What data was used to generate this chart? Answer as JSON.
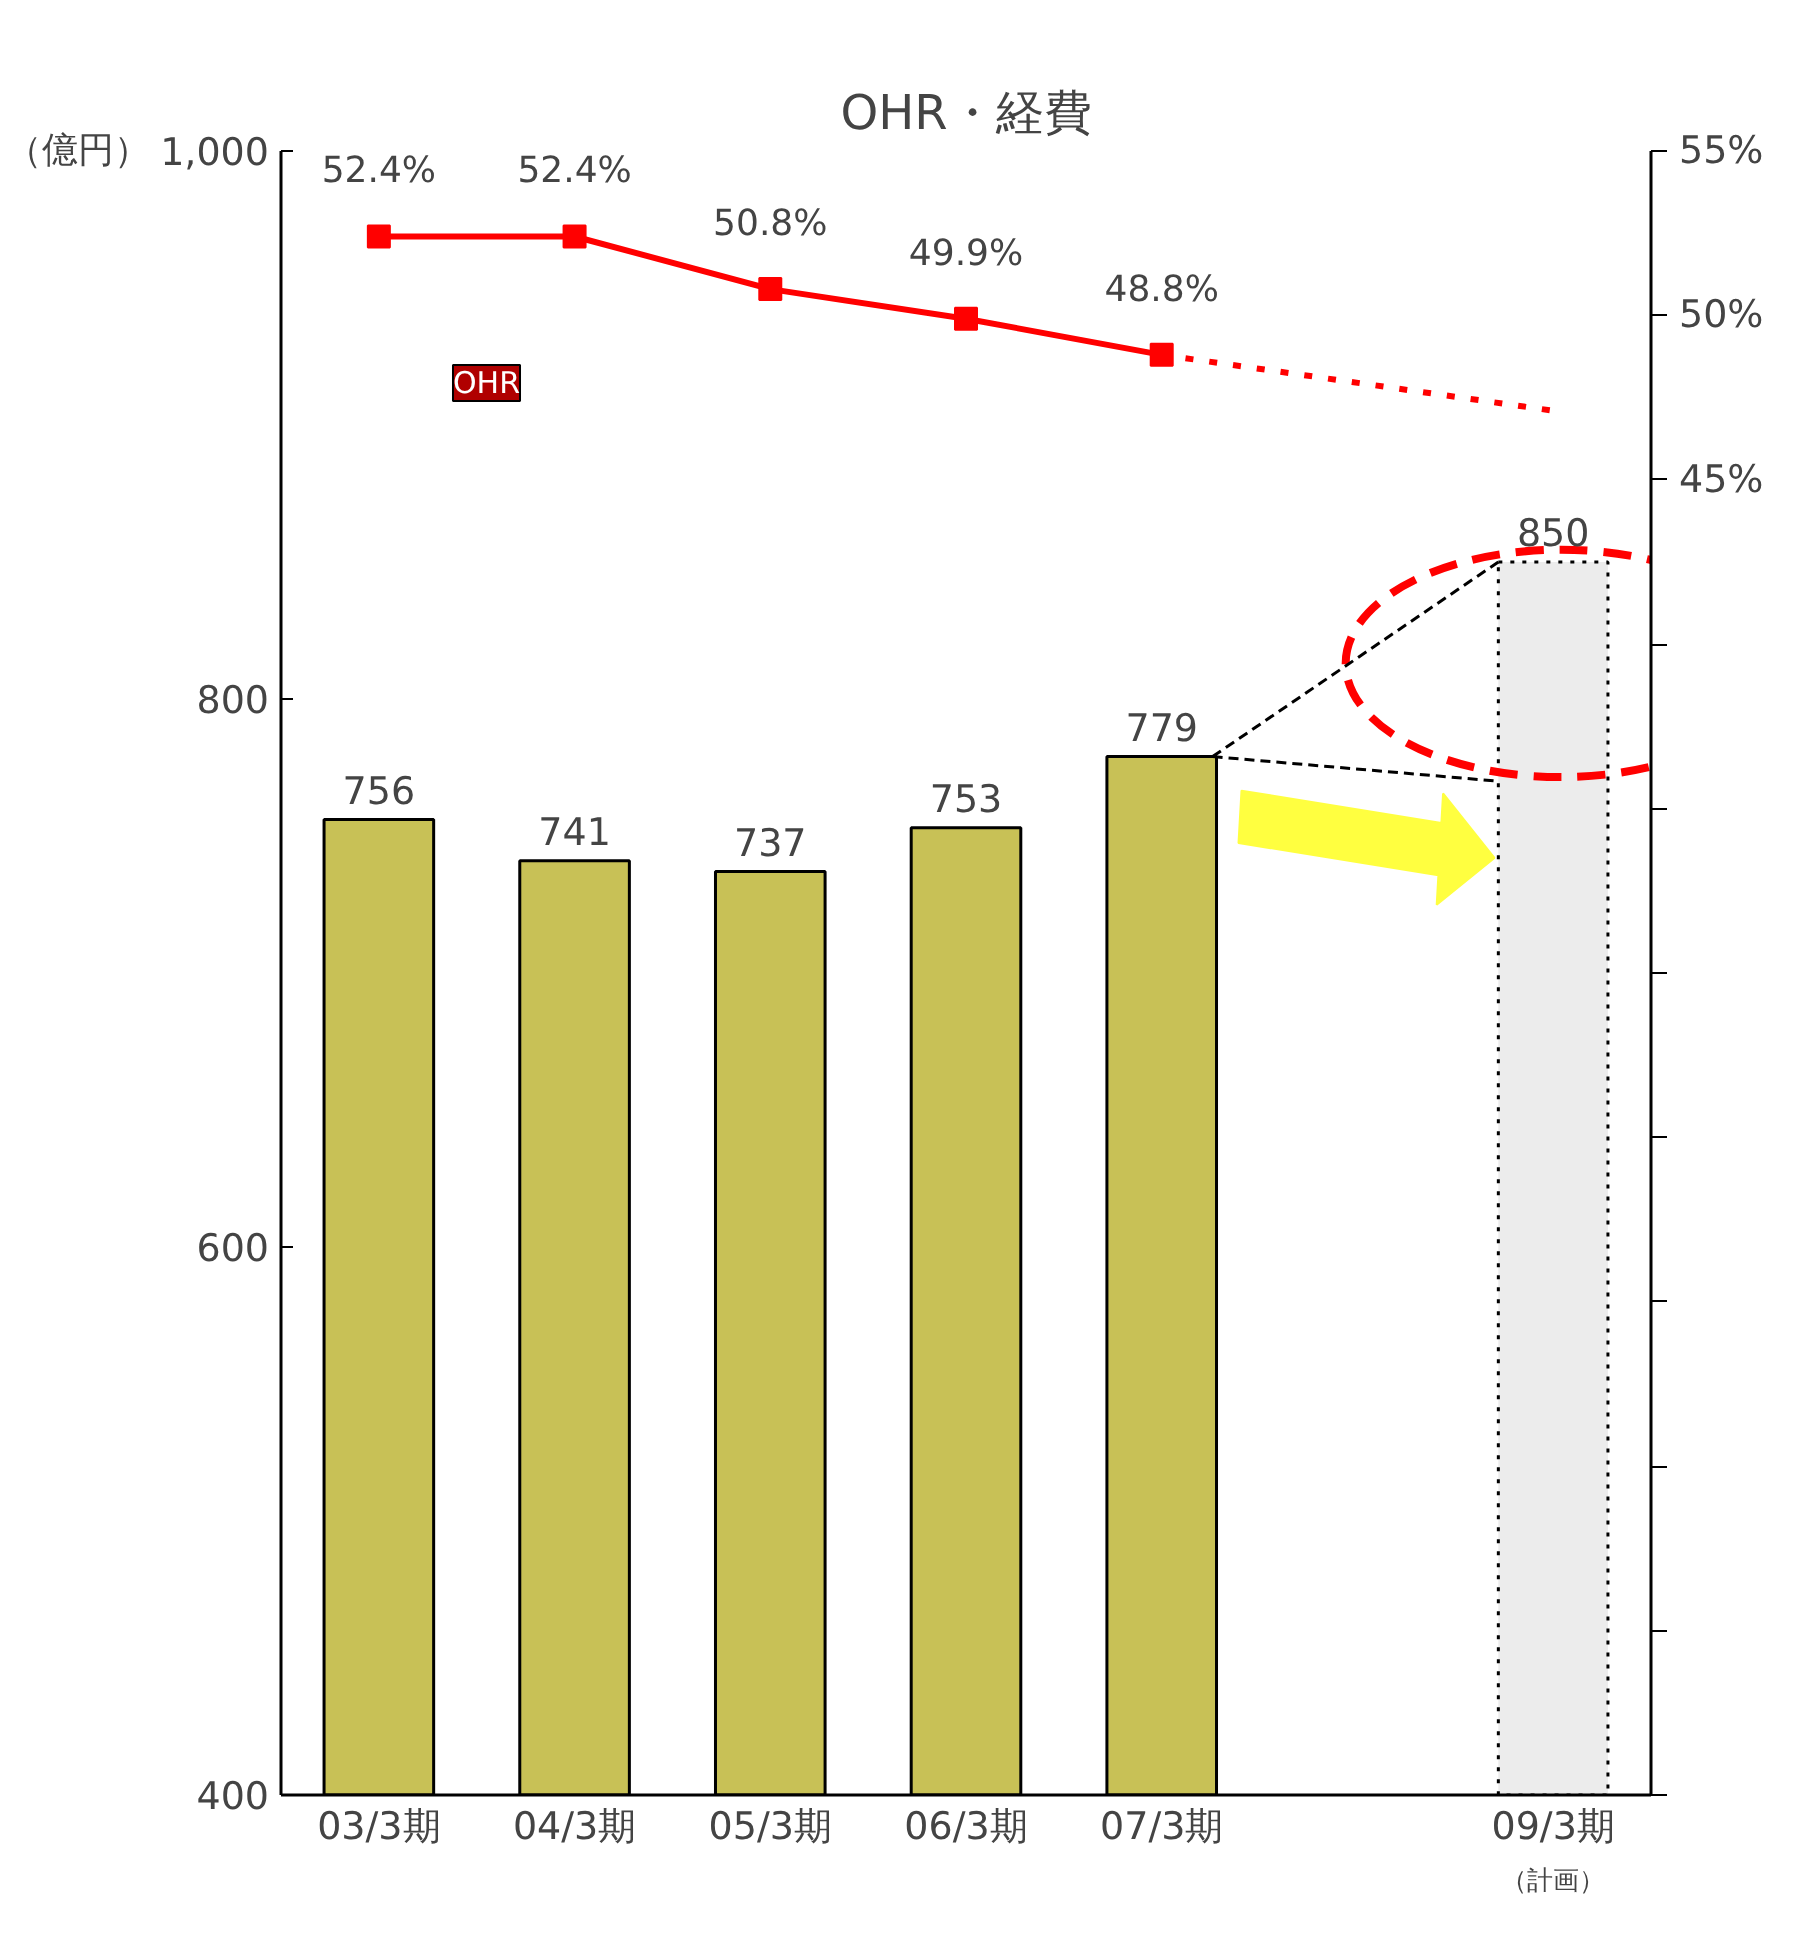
{
  "chart_data": {
    "type": "bar",
    "title": "OHR・経費",
    "ylabel": "（億円）",
    "categories": [
      "03/3期",
      "04/3期",
      "05/3期",
      "06/3期",
      "07/3期",
      null,
      "09/3期"
    ],
    "annotations": [
      "（計画）"
    ],
    "series": [
      {
        "values": [
          756,
          741,
          737,
          753,
          779,
          null,
          850
        ],
        "colors": [
          "#c8c156",
          "#c8c156",
          "#c8c156",
          "#c8c156",
          "#c8c156",
          "#c8c156",
          "#ececec"
        ]
      },
      {
        "type": "line",
        "name": "OHR",
        "axis": "y2",
        "color": "#ff0000",
        "marker": "square",
        "line_style": "solid",
        "values": [
          52.4,
          52.4,
          50.8,
          49.9,
          48.8,
          null,
          null
        ],
        "value_labels": [
          "52.4%",
          "52.4%",
          "50.8%",
          "49.9%",
          "48.8%",
          null,
          null
        ]
      },
      {
        "type": "line",
        "axis": "y2",
        "color": "#ff0000",
        "line_style": "dotted",
        "values": [
          null,
          null,
          null,
          null,
          48.8,
          null,
          47.1
        ],
        "value_labels": [
          null,
          null,
          null,
          null,
          null,
          null,
          null
        ]
      }
    ],
    "data_labels": true,
    "ylim": [
      400,
      1000
    ],
    "yticks": [
      400,
      600,
      800,
      {
        "value": 1000,
        "label": "1,000"
      }
    ],
    "y2lim": [
      5,
      55
    ],
    "y2ticks": [
      {
        "value": 5,
        "label": null
      },
      {
        "value": 10,
        "label": null
      },
      {
        "value": 15,
        "label": null
      },
      {
        "value": 20,
        "label": null
      },
      {
        "value": 25,
        "label": null
      },
      {
        "value": 30,
        "label": null
      },
      {
        "value": 35,
        "label": null
      },
      {
        "value": 40,
        "label": null
      },
      {
        "value": 45,
        "label": "45%"
      },
      {
        "value": 50,
        "label": "50%"
      },
      {
        "value": 55,
        "label": "55%"
      }
    ],
    "grid": false
  }
}
